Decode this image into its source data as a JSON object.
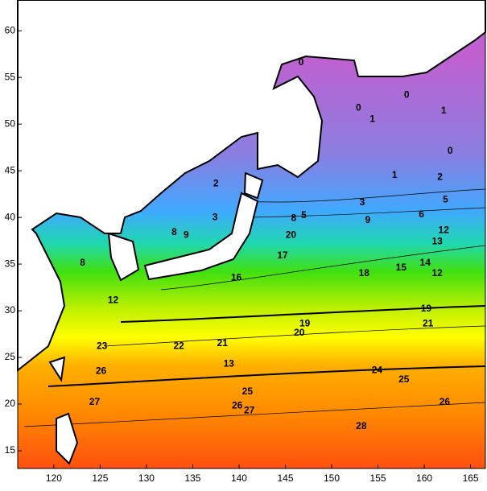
{
  "chart_data": {
    "type": "contour-map",
    "xlim": [
      116.1,
      166.6
    ],
    "ylim": [
      13.1,
      63.3
    ],
    "xticks": [
      120,
      125,
      130,
      135,
      140,
      145,
      150,
      155,
      160,
      165
    ],
    "yticks": [
      15,
      20,
      25,
      30,
      35,
      40,
      45,
      50,
      55,
      60
    ],
    "contour_labels": [
      {
        "value": 0,
        "lon": 146.7,
        "lat": 56.6
      },
      {
        "value": 0,
        "lon": 152.9,
        "lat": 51.7
      },
      {
        "value": 0,
        "lon": 158.1,
        "lat": 53.1
      },
      {
        "value": 1,
        "lon": 154.4,
        "lat": 50.5
      },
      {
        "value": 1,
        "lon": 162.1,
        "lat": 51.4
      },
      {
        "value": 0,
        "lon": 162.8,
        "lat": 47.1
      },
      {
        "value": 1,
        "lon": 156.8,
        "lat": 44.5
      },
      {
        "value": 2,
        "lon": 161.7,
        "lat": 44.3
      },
      {
        "value": 3,
        "lon": 153.3,
        "lat": 41.6
      },
      {
        "value": 5,
        "lon": 162.3,
        "lat": 41.9
      },
      {
        "value": 6,
        "lon": 159.7,
        "lat": 40.3
      },
      {
        "value": 5,
        "lon": 147.0,
        "lat": 40.2
      },
      {
        "value": 8,
        "lon": 145.9,
        "lat": 39.9
      },
      {
        "value": 9,
        "lon": 153.9,
        "lat": 39.7
      },
      {
        "value": 12,
        "lon": 162.1,
        "lat": 38.6
      },
      {
        "value": 13,
        "lon": 161.4,
        "lat": 37.4
      },
      {
        "value": 14,
        "lon": 160.1,
        "lat": 35.1
      },
      {
        "value": 12,
        "lon": 161.4,
        "lat": 34.0
      },
      {
        "value": 15,
        "lon": 157.5,
        "lat": 34.6
      },
      {
        "value": 18,
        "lon": 153.5,
        "lat": 34.0
      },
      {
        "value": 19,
        "lon": 160.2,
        "lat": 30.2
      },
      {
        "value": 21,
        "lon": 160.4,
        "lat": 28.6
      },
      {
        "value": 19,
        "lon": 147.1,
        "lat": 28.6
      },
      {
        "value": 20,
        "lon": 146.5,
        "lat": 27.6
      },
      {
        "value": 24,
        "lon": 154.9,
        "lat": 23.6
      },
      {
        "value": 25,
        "lon": 157.8,
        "lat": 22.6
      },
      {
        "value": 26,
        "lon": 162.2,
        "lat": 20.2
      },
      {
        "value": 28,
        "lon": 153.2,
        "lat": 17.6
      },
      {
        "value": 26,
        "lon": 139.8,
        "lat": 19.8
      },
      {
        "value": 27,
        "lon": 141.1,
        "lat": 19.3
      },
      {
        "value": 25,
        "lon": 140.9,
        "lat": 21.3
      },
      {
        "value": 22,
        "lon": 133.5,
        "lat": 26.2
      },
      {
        "value": 21,
        "lon": 138.2,
        "lat": 26.5
      },
      {
        "value": 13,
        "lon": 138.9,
        "lat": 24.3
      },
      {
        "value": 26,
        "lon": 125.1,
        "lat": 23.5
      },
      {
        "value": 27,
        "lon": 124.4,
        "lat": 20.2
      },
      {
        "value": 23,
        "lon": 125.2,
        "lat": 26.2
      },
      {
        "value": 12,
        "lon": 126.4,
        "lat": 31.1
      },
      {
        "value": 8,
        "lon": 123.1,
        "lat": 35.1
      },
      {
        "value": 9,
        "lon": 134.3,
        "lat": 38.1
      },
      {
        "value": 8,
        "lon": 133.0,
        "lat": 38.4
      },
      {
        "value": 3,
        "lon": 137.4,
        "lat": 40.0
      },
      {
        "value": 16,
        "lon": 139.7,
        "lat": 33.5
      },
      {
        "value": 2,
        "lon": 137.5,
        "lat": 43.6
      },
      {
        "value": 20,
        "lon": 145.6,
        "lat": 38.1
      },
      {
        "value": 17,
        "lon": 144.7,
        "lat": 35.9
      }
    ]
  }
}
